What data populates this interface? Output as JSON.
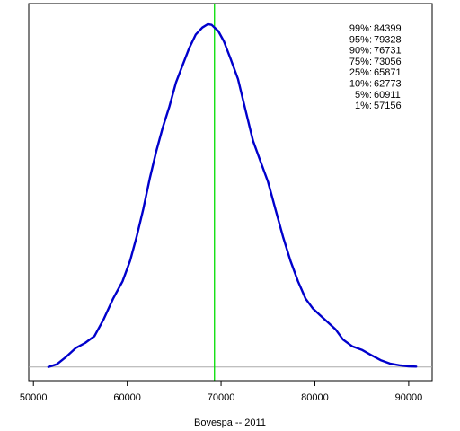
{
  "chart_data": {
    "type": "line",
    "title": "",
    "xlabel": "Bovespa -- 2011",
    "ylabel": "",
    "xlim": [
      49500,
      92500
    ],
    "ylim": [
      -0.04,
      1.06
    ],
    "x_ticks": [
      50000,
      60000,
      70000,
      80000,
      90000
    ],
    "x_tick_labels": [
      "50000",
      "60000",
      "70000",
      "80000",
      "90000"
    ],
    "grid": false,
    "legend": "none",
    "series": [
      {
        "color": "#0000CC",
        "x": [
          51600,
          52500,
          53500,
          54500,
          55500,
          56500,
          57500,
          58500,
          59500,
          60300,
          61000,
          61700,
          62400,
          63100,
          63800,
          64500,
          65200,
          65900,
          66600,
          67300,
          68000,
          68600,
          69000,
          69300,
          69700,
          70300,
          71000,
          71800,
          72600,
          73400,
          74200,
          75000,
          75800,
          76600,
          77400,
          78200,
          79000,
          79800,
          80600,
          81400,
          82200,
          83000,
          84000,
          85000,
          86000,
          87000,
          88000,
          89000,
          90000,
          90800
        ],
        "y": [
          0.0,
          0.008,
          0.03,
          0.055,
          0.07,
          0.09,
          0.14,
          0.2,
          0.25,
          0.31,
          0.38,
          0.46,
          0.55,
          0.63,
          0.7,
          0.76,
          0.83,
          0.88,
          0.93,
          0.97,
          0.99,
          1.0,
          0.998,
          0.99,
          0.98,
          0.95,
          0.9,
          0.84,
          0.75,
          0.66,
          0.6,
          0.54,
          0.46,
          0.38,
          0.31,
          0.25,
          0.2,
          0.17,
          0.15,
          0.13,
          0.11,
          0.08,
          0.06,
          0.05,
          0.035,
          0.02,
          0.01,
          0.005,
          0.002,
          0.001
        ]
      }
    ],
    "baseline": {
      "y": 0,
      "color": "#AAAAAA"
    },
    "reference_line": {
      "x": 69300,
      "color": "#00DD00"
    },
    "annotations": [
      {
        "label": "99%:",
        "value": "84399"
      },
      {
        "label": "95%:",
        "value": "79328"
      },
      {
        "label": "90%:",
        "value": "76731"
      },
      {
        "label": "75%:",
        "value": "73056"
      },
      {
        "label": "25%:",
        "value": "65871"
      },
      {
        "label": "10%:",
        "value": "62773"
      },
      {
        "label": "5%:",
        "value": "60911"
      },
      {
        "label": "1%:",
        "value": "57156"
      }
    ]
  }
}
